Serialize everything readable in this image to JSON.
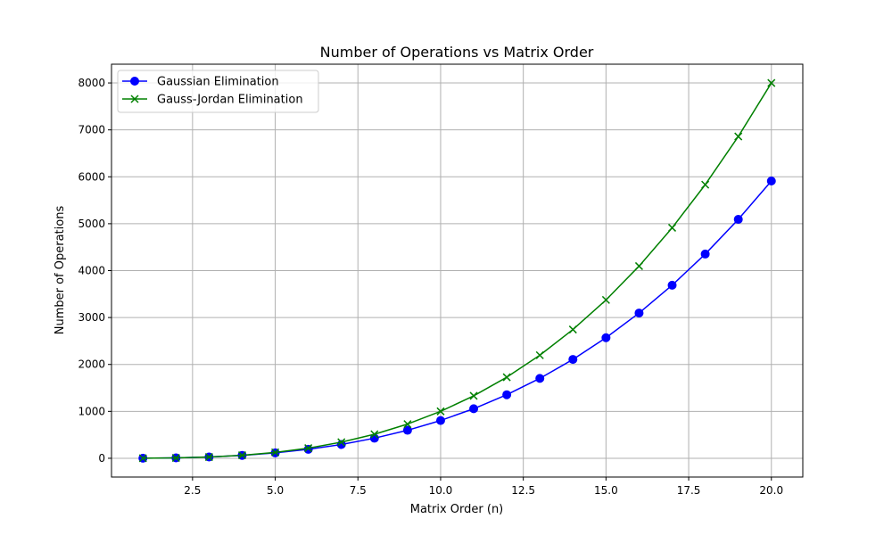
{
  "chart_data": {
    "type": "line",
    "title": "Number of Operations vs Matrix Order",
    "xlabel": "Matrix Order (n)",
    "ylabel": "Number of Operations",
    "xlim": [
      0.05,
      20.95
    ],
    "ylim": [
      -400,
      8400
    ],
    "xticks": [
      2.5,
      5.0,
      7.5,
      10.0,
      12.5,
      15.0,
      17.5,
      20.0
    ],
    "xtick_labels": [
      "2.5",
      "5.0",
      "7.5",
      "10.0",
      "12.5",
      "15.0",
      "17.5",
      "20.0"
    ],
    "yticks": [
      0,
      1000,
      2000,
      3000,
      4000,
      5000,
      6000,
      7000,
      8000
    ],
    "ytick_labels": [
      "0",
      "1000",
      "2000",
      "3000",
      "4000",
      "5000",
      "6000",
      "7000",
      "8000"
    ],
    "grid": true,
    "legend_position": "upper left",
    "x": [
      1,
      2,
      3,
      4,
      5,
      6,
      7,
      8,
      9,
      10,
      11,
      12,
      13,
      14,
      15,
      16,
      17,
      18,
      19,
      20
    ],
    "series": [
      {
        "name": "Gaussian Elimination",
        "marker": "circle",
        "color": "#0000ff",
        "values": [
          1,
          9,
          28,
          62,
          115,
          191,
          294,
          428,
          597,
          805,
          1056,
          1354,
          1703,
          2107,
          2570,
          3096,
          3689,
          4353,
          5092,
          5910
        ]
      },
      {
        "name": "Gauss-Jordan Elimination",
        "marker": "x",
        "color": "#008000",
        "values": [
          1,
          8,
          27,
          64,
          125,
          216,
          343,
          512,
          729,
          1000,
          1331,
          1728,
          2197,
          2744,
          3375,
          4096,
          4913,
          5832,
          6859,
          8000
        ]
      }
    ]
  }
}
